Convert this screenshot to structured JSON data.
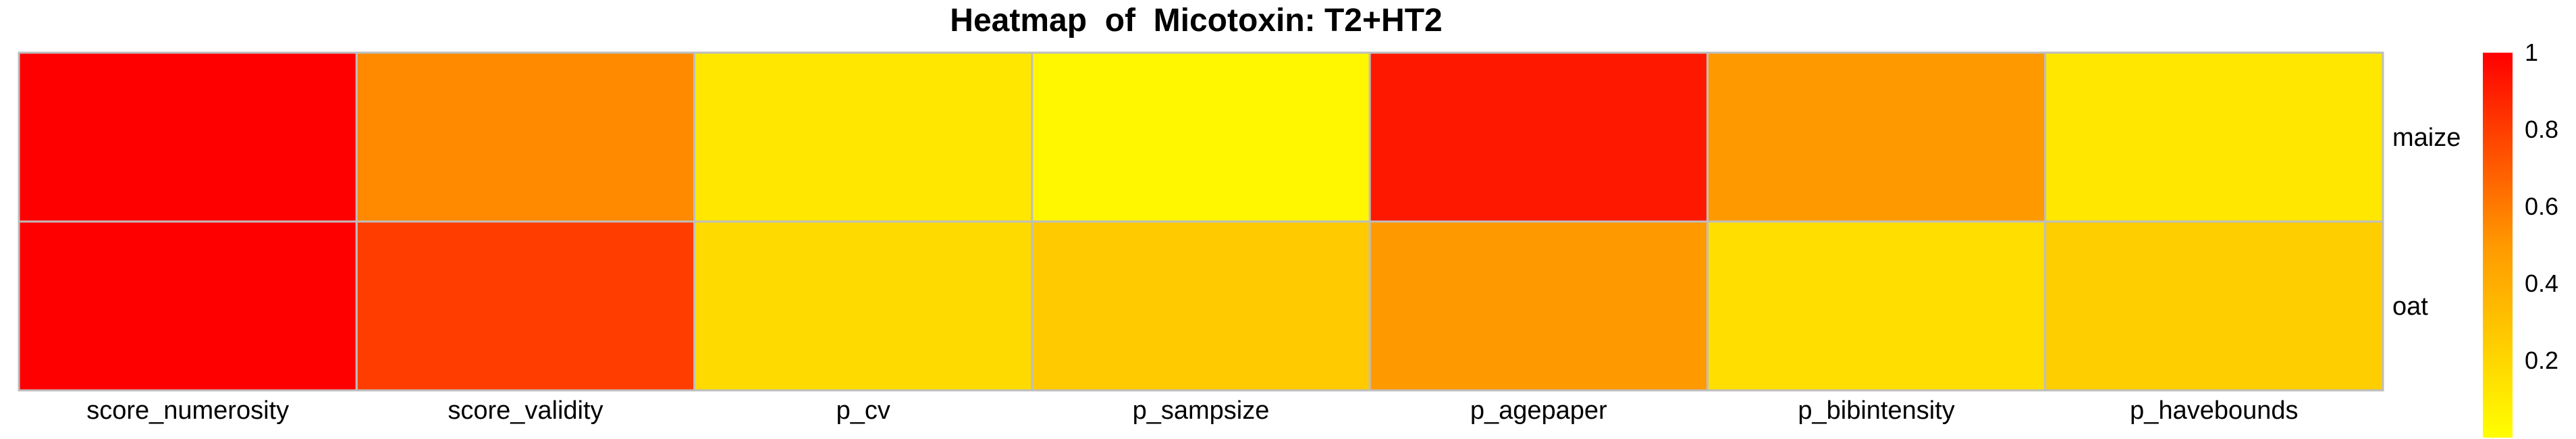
{
  "chart_data": {
    "type": "heatmap",
    "title": "Heatmap  of  Micotoxin: T2+HT2",
    "columns": [
      "score_numerosity",
      "score_validity",
      "p_cv",
      "p_sampsize",
      "p_agepaper",
      "p_bibintensity",
      "p_havebounds"
    ],
    "rows": [
      "maize",
      "oat"
    ],
    "values": [
      [
        1.0,
        0.55,
        0.12,
        0.04,
        0.92,
        0.5,
        0.12
      ],
      [
        1.0,
        0.8,
        0.18,
        0.26,
        0.5,
        0.16,
        0.24
      ]
    ],
    "color_scale": {
      "min": 0.0,
      "max": 1.0,
      "low_color": "#FFFF00",
      "mid_color": "#FF9900",
      "high_color": "#FF0000"
    },
    "legend": {
      "ticks": [
        0.2,
        0.4,
        0.6,
        0.8,
        1
      ],
      "tick_labels": [
        "0.2",
        "0.4",
        "0.6",
        "0.8",
        "1"
      ],
      "position": "right"
    },
    "grid_color": "#BEBEBE"
  }
}
